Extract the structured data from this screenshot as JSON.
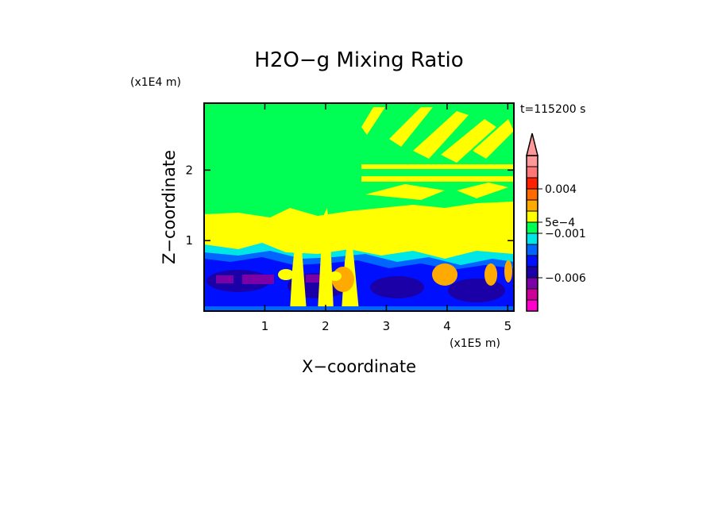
{
  "chart_data": {
    "type": "heatmap",
    "title": "H2O−g Mixing Ratio",
    "xlabel": "X−coordinate",
    "ylabel": "Z−coordinate",
    "x_scale_label": "(x1E5 m)",
    "y_scale_label": "(x1E4 m)",
    "time_label": "t=115200 s",
    "xlim": [
      0.0,
      5.1
    ],
    "ylim": [
      0.0,
      2.95
    ],
    "x_ticks": [
      {
        "value": 1,
        "label": "1"
      },
      {
        "value": 2,
        "label": "2"
      },
      {
        "value": 3,
        "label": "3"
      },
      {
        "value": 4,
        "label": "4"
      },
      {
        "value": 5,
        "label": "5"
      }
    ],
    "y_ticks": [
      {
        "value": 1,
        "label": "1"
      },
      {
        "value": 2,
        "label": "2"
      }
    ],
    "colorbar": {
      "colors": [
        "#ff00cc",
        "#cc0099",
        "#7a00a8",
        "#1b00a8",
        "#0010ff",
        "#0066ff",
        "#00e6e6",
        "#00ff55",
        "#ffff00",
        "#ffaa00",
        "#ff6a00",
        "#ff2200",
        "#ff7777",
        "#ff9999"
      ],
      "labels": [
        {
          "text": "−0.006",
          "at_band": 3
        },
        {
          "text": "−0.001",
          "at_band": 7
        },
        {
          "text": "5e−4",
          "at_band": 8
        },
        {
          "text": "0.004",
          "at_band": 11
        }
      ],
      "extend": "max"
    },
    "regions": [
      {
        "name": "upper-air",
        "value_class": "near zero",
        "color": "#00ff55"
      },
      {
        "name": "mid-level band",
        "value_class": "positive (~5e-4)",
        "color": "#ffff00"
      },
      {
        "name": "boundary layer",
        "value_class": "negative (~-0.001 to -0.006)",
        "color": "#0010ff"
      },
      {
        "name": "convective plumes",
        "value_class": "positive (~0.001-0.004)",
        "color": "#ffaa00"
      }
    ]
  }
}
